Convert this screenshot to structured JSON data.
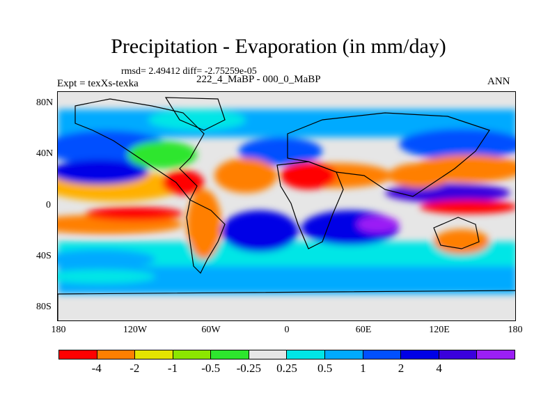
{
  "title": "Precipitation - Evaporation (in mm/day)",
  "stats": "rmsd= 2.49412 diff= -2.75259e-05",
  "experiment": "Expt = texXs-texka",
  "comparison": "222_4_MaBP - 000_0_MaBP",
  "season": "ANN",
  "lat_ticks": [
    "80N",
    "40N",
    "0",
    "40S",
    "80S"
  ],
  "lon_ticks": [
    "180",
    "120W",
    "60W",
    "0",
    "60E",
    "120E",
    "180"
  ],
  "colorbar": {
    "colors": [
      "#ff0000",
      "#ff7f00",
      "#e5e500",
      "#8ce600",
      "#2ee62e",
      "#e6e6e6",
      "#00e6e6",
      "#00aaff",
      "#0050ff",
      "#0000e6",
      "#3a00dd",
      "#9b1ff5"
    ],
    "labels": [
      "-4",
      "-2",
      "-1",
      "-0.5",
      "-0.25",
      "0.25",
      "0.5",
      "1",
      "2",
      "4"
    ]
  }
}
